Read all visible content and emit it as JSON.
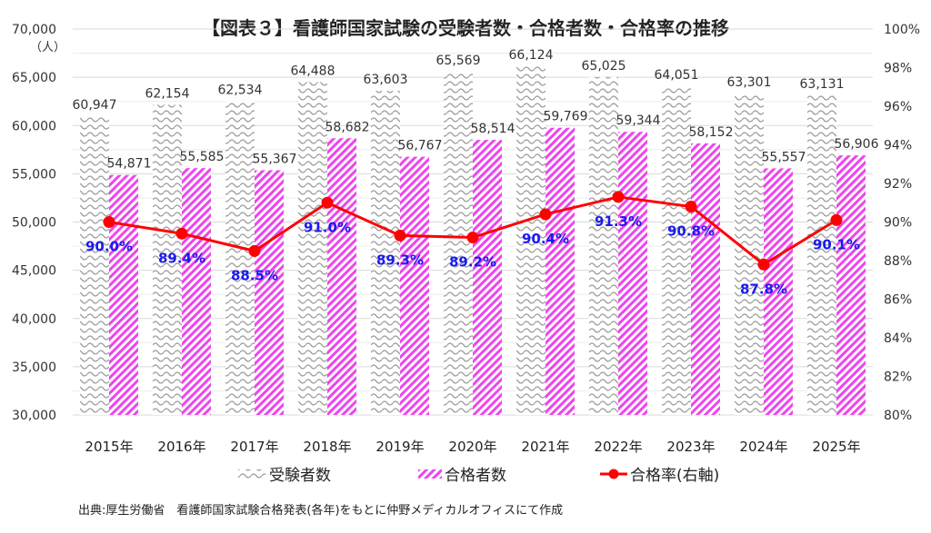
{
  "chart_data": {
    "type": "bar",
    "title": "【図表３】看護師国家試験の受験者数・合格者数・合格率の推移",
    "categories": [
      "2015年",
      "2016年",
      "2017年",
      "2018年",
      "2019年",
      "2020年",
      "2021年",
      "2022年",
      "2023年",
      "2024年",
      "2025年"
    ],
    "series": [
      {
        "name": "受験者数",
        "axis": "left",
        "kind": "bar",
        "pattern": "wave",
        "color": "#a0a0a0",
        "values": [
          60947,
          62154,
          62534,
          64488,
          63603,
          65569,
          66124,
          65025,
          64051,
          63301,
          63131
        ],
        "labels": [
          "60,947",
          "62,154",
          "62,534",
          "64,488",
          "63,603",
          "65,569",
          "66,124",
          "65,025",
          "64,051",
          "63,301",
          "63,131"
        ]
      },
      {
        "name": "合格者数",
        "axis": "left",
        "kind": "bar",
        "pattern": "diagonal-hatch",
        "color": "#ee44ee",
        "values": [
          54871,
          55585,
          55367,
          58682,
          56767,
          58514,
          59769,
          59344,
          58152,
          55557,
          56906
        ],
        "labels": [
          "54,871",
          "55,585",
          "55,367",
          "58,682",
          "56,767",
          "58,514",
          "59,769",
          "59,344",
          "58,152",
          "55,557",
          "56,906"
        ]
      },
      {
        "name": "合格率(右軸)",
        "axis": "right",
        "kind": "line",
        "color": "#ff0000",
        "label_color": "#1a1aee",
        "values": [
          90.0,
          89.4,
          88.5,
          91.0,
          89.3,
          89.2,
          90.4,
          91.3,
          90.8,
          87.8,
          90.1
        ],
        "labels": [
          "90.0%",
          "89.4%",
          "88.5%",
          "91.0%",
          "89.3%",
          "89.2%",
          "90.4%",
          "91.3%",
          "90.8%",
          "87.8%",
          "90.1%"
        ]
      }
    ],
    "y_left": {
      "unit_label": "（人）",
      "ylim": [
        30000,
        70000
      ],
      "ticks": [
        "30,000",
        "35,000",
        "40,000",
        "45,000",
        "50,000",
        "55,000",
        "60,000",
        "65,000",
        "70,000"
      ]
    },
    "y_right": {
      "ylim": [
        80,
        100
      ],
      "ticks": [
        "80%",
        "82%",
        "84%",
        "86%",
        "88%",
        "90%",
        "92%",
        "94%",
        "96%",
        "98%",
        "100%"
      ]
    },
    "grid": true,
    "legend": {
      "placement": "bottom",
      "items": [
        "受験者数",
        "合格者数",
        "合格率(右軸)"
      ]
    },
    "source": "出典:厚生労働省　看護師国家試験合格発表(各年)をもとに仲野メディカルオフィスにて作成"
  }
}
